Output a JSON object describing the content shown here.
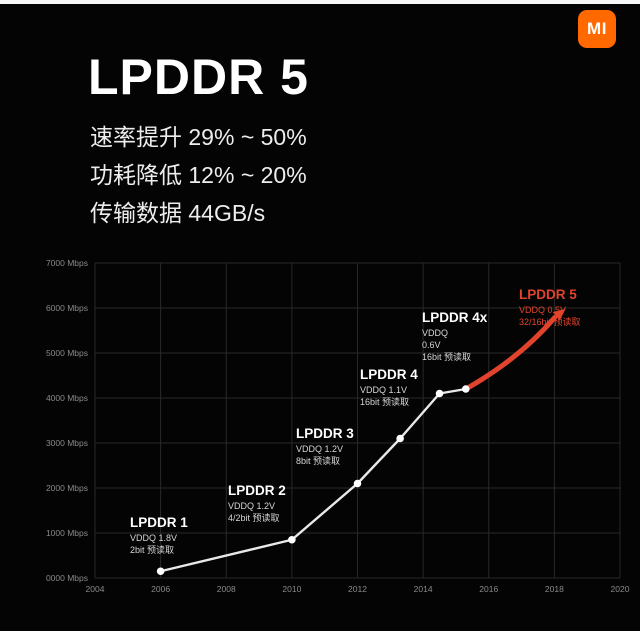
{
  "page": {
    "background": "#040404"
  },
  "logo": {
    "text": "MI",
    "bg": "#ff6900"
  },
  "header": {
    "title": "LPDDR 5",
    "bullets": [
      "速率提升 29% ~ 50%",
      "功耗降低 12% ~ 20%",
      "传输数据 44GB/s"
    ]
  },
  "chart_data": {
    "type": "line",
    "title": "",
    "xlabel": "",
    "ylabel": "Mbps",
    "x_range": [
      2004,
      2020
    ],
    "y_range": [
      0,
      7000
    ],
    "grid": true,
    "legend": "none",
    "grid_color": "#282828",
    "axis_text_color": "#8a8a8a",
    "line_color": "#e9e9e9",
    "point_color": "#ffffff",
    "highlight_color": "#e2432d",
    "y_ticks": [
      "0000 Mbps",
      "1000 Mbps",
      "2000 Mbps",
      "3000 Mbps",
      "4000 Mbps",
      "5000 Mbps",
      "6000 Mbps",
      "7000 Mbps"
    ],
    "x_ticks": [
      "2004",
      "2006",
      "2008",
      "2010",
      "2012",
      "2014",
      "2016",
      "2018",
      "2020"
    ],
    "line_points": [
      {
        "year": 2006,
        "mbps": 150
      },
      {
        "year": 2010,
        "mbps": 850
      },
      {
        "year": 2012,
        "mbps": 2100
      },
      {
        "year": 2013.3,
        "mbps": 3100
      },
      {
        "year": 2014.5,
        "mbps": 4100
      },
      {
        "year": 2015.3,
        "mbps": 4200
      }
    ],
    "highlight_point": {
      "year": 2018.2,
      "mbps": 5900
    },
    "generations": [
      {
        "name": "LPDDR 1",
        "details": [
          "VDDQ 1.8V",
          "2bit 预读取"
        ],
        "year": 2006,
        "approx_mbps": 150,
        "highlight": false
      },
      {
        "name": "LPDDR 2",
        "details": [
          "VDDQ 1.2V",
          "4/2bit 预读取"
        ],
        "year": 2010,
        "approx_mbps": 850,
        "highlight": false
      },
      {
        "name": "LPDDR 3",
        "details": [
          "VDDQ 1.2V",
          "8bit 预读取"
        ],
        "year": 2012,
        "approx_mbps": 2100,
        "highlight": false
      },
      {
        "name": "LPDDR 4",
        "details": [
          "VDDQ 1.1V",
          "16bit 预读取"
        ],
        "year": 2014,
        "approx_mbps": 4100,
        "highlight": false
      },
      {
        "name": "LPDDR 4x",
        "details": [
          "VDDQ",
          "0.6V",
          "16bit 预读取"
        ],
        "year": 2016,
        "approx_mbps": 4200,
        "highlight": false
      },
      {
        "name": "LPDDR 5",
        "details": [
          "VDDQ 0.5V",
          "32/16bit 预读取"
        ],
        "year": 2018,
        "approx_mbps": 5900,
        "highlight": true
      }
    ]
  }
}
